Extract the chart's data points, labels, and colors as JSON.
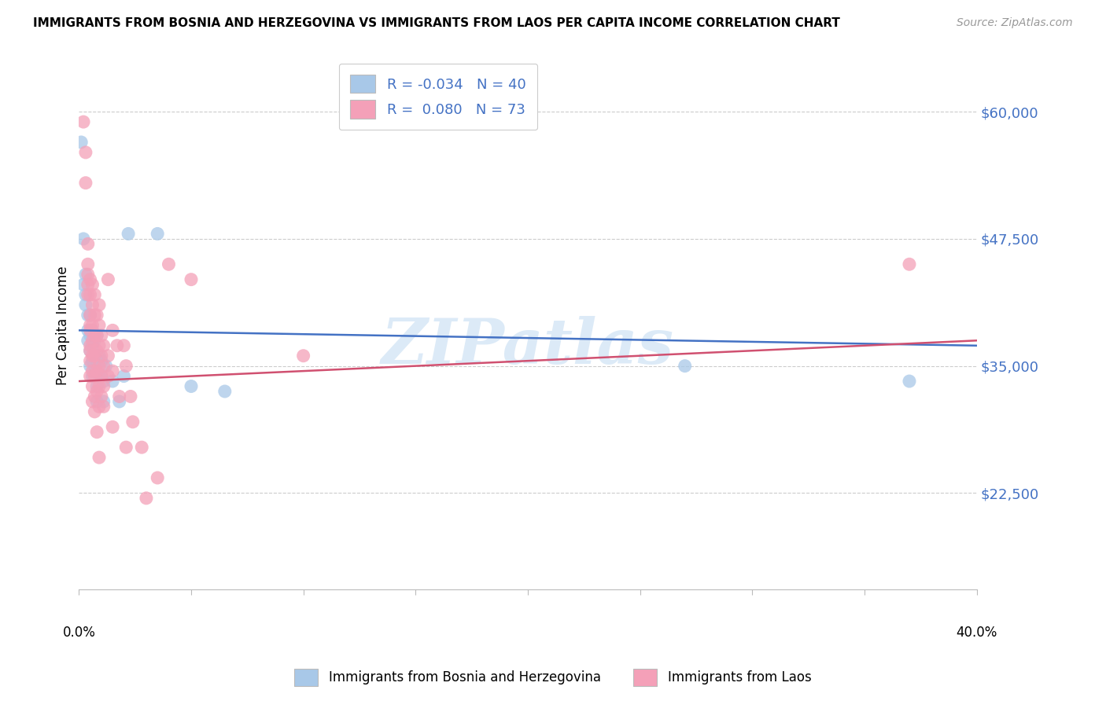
{
  "title": "IMMIGRANTS FROM BOSNIA AND HERZEGOVINA VS IMMIGRANTS FROM LAOS PER CAPITA INCOME CORRELATION CHART",
  "source": "Source: ZipAtlas.com",
  "ylabel": "Per Capita Income",
  "ytick_labels": [
    "$60,000",
    "$47,500",
    "$35,000",
    "$22,500"
  ],
  "ytick_values": [
    60000,
    47500,
    35000,
    22500
  ],
  "ymin": 13000,
  "ymax": 65000,
  "xmin": 0.0,
  "xmax": 0.4,
  "legend1_label": "R = -0.034   N = 40",
  "legend2_label": "R =  0.080   N = 73",
  "series1_color": "#a8c8e8",
  "series2_color": "#f4a0b8",
  "line1_color": "#4472C4",
  "line2_color": "#D05070",
  "watermark": "ZIPatlas",
  "bosnia_R": -0.034,
  "laos_R": 0.08,
  "bosnia_line": [
    38500,
    37000
  ],
  "laos_line": [
    33500,
    37500
  ],
  "bosnia_points": [
    [
      0.001,
      57000
    ],
    [
      0.002,
      47500
    ],
    [
      0.002,
      43000
    ],
    [
      0.003,
      44000
    ],
    [
      0.003,
      42000
    ],
    [
      0.003,
      41000
    ],
    [
      0.004,
      40000
    ],
    [
      0.004,
      38500
    ],
    [
      0.004,
      37500
    ],
    [
      0.005,
      40000
    ],
    [
      0.005,
      38000
    ],
    [
      0.005,
      36500
    ],
    [
      0.005,
      35000
    ],
    [
      0.006,
      38500
    ],
    [
      0.006,
      37000
    ],
    [
      0.006,
      35500
    ],
    [
      0.006,
      34000
    ],
    [
      0.007,
      37500
    ],
    [
      0.007,
      36000
    ],
    [
      0.007,
      35000
    ],
    [
      0.008,
      38000
    ],
    [
      0.008,
      35500
    ],
    [
      0.008,
      33000
    ],
    [
      0.008,
      31500
    ],
    [
      0.009,
      36000
    ],
    [
      0.009,
      34000
    ],
    [
      0.01,
      35500
    ],
    [
      0.01,
      34000
    ],
    [
      0.011,
      33500
    ],
    [
      0.011,
      31500
    ],
    [
      0.012,
      35000
    ],
    [
      0.015,
      33500
    ],
    [
      0.018,
      31500
    ],
    [
      0.02,
      34000
    ],
    [
      0.022,
      48000
    ],
    [
      0.035,
      48000
    ],
    [
      0.05,
      33000
    ],
    [
      0.065,
      32500
    ],
    [
      0.27,
      35000
    ],
    [
      0.37,
      33500
    ]
  ],
  "laos_points": [
    [
      0.002,
      59000
    ],
    [
      0.003,
      53000
    ],
    [
      0.003,
      56000
    ],
    [
      0.004,
      47000
    ],
    [
      0.004,
      45000
    ],
    [
      0.004,
      44000
    ],
    [
      0.004,
      43000
    ],
    [
      0.004,
      42000
    ],
    [
      0.005,
      43500
    ],
    [
      0.005,
      42000
    ],
    [
      0.005,
      40000
    ],
    [
      0.005,
      39000
    ],
    [
      0.005,
      38500
    ],
    [
      0.005,
      37000
    ],
    [
      0.005,
      36500
    ],
    [
      0.005,
      35500
    ],
    [
      0.005,
      34000
    ],
    [
      0.006,
      43000
    ],
    [
      0.006,
      41000
    ],
    [
      0.006,
      39000
    ],
    [
      0.006,
      37500
    ],
    [
      0.006,
      36000
    ],
    [
      0.006,
      34500
    ],
    [
      0.006,
      33000
    ],
    [
      0.006,
      31500
    ],
    [
      0.007,
      42000
    ],
    [
      0.007,
      40000
    ],
    [
      0.007,
      38000
    ],
    [
      0.007,
      36000
    ],
    [
      0.007,
      34000
    ],
    [
      0.007,
      32000
    ],
    [
      0.007,
      30500
    ],
    [
      0.008,
      40000
    ],
    [
      0.008,
      38000
    ],
    [
      0.008,
      36500
    ],
    [
      0.008,
      34500
    ],
    [
      0.008,
      32500
    ],
    [
      0.008,
      28500
    ],
    [
      0.009,
      41000
    ],
    [
      0.009,
      39000
    ],
    [
      0.009,
      37000
    ],
    [
      0.009,
      35000
    ],
    [
      0.009,
      33000
    ],
    [
      0.009,
      31000
    ],
    [
      0.009,
      26000
    ],
    [
      0.01,
      38000
    ],
    [
      0.01,
      36000
    ],
    [
      0.01,
      34000
    ],
    [
      0.01,
      32000
    ],
    [
      0.011,
      37000
    ],
    [
      0.011,
      35000
    ],
    [
      0.011,
      33000
    ],
    [
      0.011,
      31000
    ],
    [
      0.013,
      43500
    ],
    [
      0.013,
      36000
    ],
    [
      0.013,
      34000
    ],
    [
      0.015,
      38500
    ],
    [
      0.015,
      34500
    ],
    [
      0.015,
      29000
    ],
    [
      0.017,
      37000
    ],
    [
      0.018,
      32000
    ],
    [
      0.02,
      37000
    ],
    [
      0.021,
      35000
    ],
    [
      0.021,
      27000
    ],
    [
      0.023,
      32000
    ],
    [
      0.024,
      29500
    ],
    [
      0.028,
      27000
    ],
    [
      0.03,
      22000
    ],
    [
      0.035,
      24000
    ],
    [
      0.04,
      45000
    ],
    [
      0.05,
      43500
    ],
    [
      0.1,
      36000
    ],
    [
      0.37,
      45000
    ]
  ]
}
